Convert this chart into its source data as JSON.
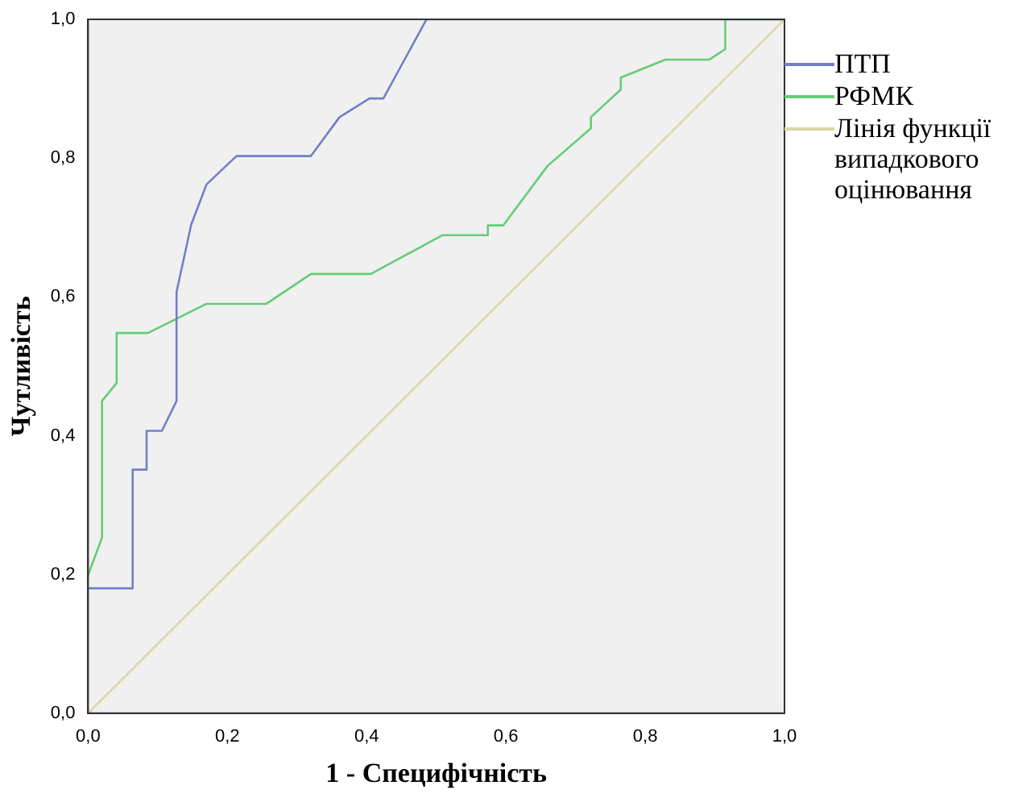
{
  "chart_data": {
    "type": "line",
    "xlabel": "1 - Специфічність",
    "ylabel": "Чутливість",
    "xlim": [
      0,
      1
    ],
    "ylim": [
      0,
      1
    ],
    "xticks": [
      {
        "value": 0,
        "label": "0,0"
      },
      {
        "value": 0.2,
        "label": "0,2"
      },
      {
        "value": 0.4,
        "label": "0,4"
      },
      {
        "value": 0.6,
        "label": "0,6"
      },
      {
        "value": 0.8,
        "label": "0,8"
      },
      {
        "value": 1,
        "label": "1,0"
      }
    ],
    "yticks": [
      {
        "value": 0,
        "label": "0,0"
      },
      {
        "value": 0.2,
        "label": "0,2"
      },
      {
        "value": 0.4,
        "label": "0,4"
      },
      {
        "value": 0.6,
        "label": "0,6"
      },
      {
        "value": 0.8,
        "label": "0,8"
      },
      {
        "value": 1,
        "label": "1,0"
      }
    ],
    "grid": false,
    "legend": "right",
    "marker": "none",
    "line_style": "solid",
    "series": [
      {
        "name": "ПТП",
        "color": "#7080c8",
        "x": [
          0,
          0.064,
          0.064,
          0.084,
          0.084,
          0.106,
          0.127,
          0.127,
          0.148,
          0.17,
          0.213,
          0.32,
          0.361,
          0.404,
          0.424,
          0.486,
          1
        ],
        "values": [
          0.18,
          0.18,
          0.351,
          0.351,
          0.407,
          0.407,
          0.45,
          0.607,
          0.704,
          0.762,
          0.803,
          0.803,
          0.859,
          0.886,
          0.886,
          1,
          1
        ]
      },
      {
        "name": "РФМК",
        "color": "#66cc77",
        "x": [
          0,
          0.02,
          0.02,
          0.041,
          0.041,
          0.086,
          0.17,
          0.256,
          0.32,
          0.406,
          0.509,
          0.574,
          0.574,
          0.596,
          0.66,
          0.722,
          0.722,
          0.765,
          0.765,
          0.829,
          0.892,
          0.915,
          0.915,
          1
        ],
        "values": [
          0.199,
          0.253,
          0.45,
          0.476,
          0.548,
          0.548,
          0.59,
          0.59,
          0.633,
          0.633,
          0.689,
          0.689,
          0.703,
          0.703,
          0.789,
          0.843,
          0.859,
          0.899,
          0.916,
          0.942,
          0.942,
          0.957,
          1,
          1
        ]
      },
      {
        "name": "Лінія функції випадкового оцінювання",
        "color": "#dcd8a8",
        "x": [
          0,
          1
        ],
        "values": [
          0,
          1
        ]
      }
    ]
  }
}
